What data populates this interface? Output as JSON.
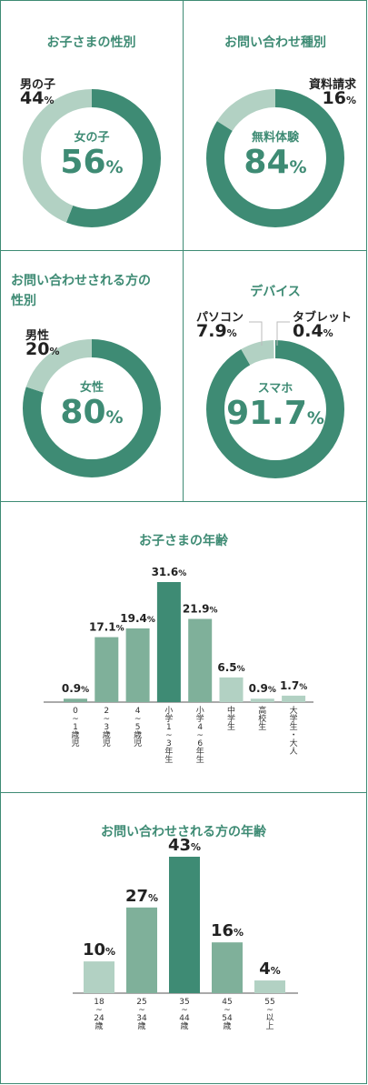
{
  "colors": {
    "dark": "#3e8b74",
    "mid": "#7fb09a",
    "light": "#b2d1c3",
    "border": "#3e8b74"
  },
  "donuts": [
    {
      "title_lines": [
        "お子さまの性別"
      ],
      "title_align": "center",
      "major": {
        "name": "女の子",
        "value": 56,
        "unit": "%"
      },
      "minor": [
        {
          "name": "男の子",
          "value": 44,
          "unit": "%",
          "color": "light"
        }
      ]
    },
    {
      "title_lines": [
        "お問い合わせ種別"
      ],
      "title_align": "center",
      "major": {
        "name": "無料体験",
        "value": 84,
        "unit": "%"
      },
      "minor": [
        {
          "name": "資料請求",
          "value": 16,
          "unit": "%",
          "color": "light"
        }
      ]
    },
    {
      "title_lines": [
        "お問い合わせされる方の",
        "性別"
      ],
      "title_align": "left",
      "major": {
        "name": "女性",
        "value": 80,
        "unit": "%"
      },
      "minor": [
        {
          "name": "男性",
          "value": 20,
          "unit": "%",
          "color": "light"
        }
      ]
    },
    {
      "title_lines": [
        "デバイス"
      ],
      "title_align": "center",
      "major": {
        "name": "スマホ",
        "value": 91.7,
        "unit": "%"
      },
      "minor": [
        {
          "name": "パソコン",
          "value": 7.9,
          "unit": "%",
          "color": "light"
        },
        {
          "name": "タブレット",
          "value": 0.4,
          "unit": "%",
          "color": "white"
        }
      ]
    }
  ],
  "chart_data": [
    {
      "type": "pie",
      "title": "お子さまの性別",
      "categories": [
        "女の子",
        "男の子"
      ],
      "values": [
        56,
        44
      ]
    },
    {
      "type": "pie",
      "title": "お問い合わせ種別",
      "categories": [
        "無料体験",
        "資料請求"
      ],
      "values": [
        84,
        16
      ]
    },
    {
      "type": "pie",
      "title": "お問い合わせされる方の性別",
      "categories": [
        "女性",
        "男性"
      ],
      "values": [
        80,
        20
      ]
    },
    {
      "type": "pie",
      "title": "デバイス",
      "categories": [
        "スマホ",
        "パソコン",
        "タブレット"
      ],
      "values": [
        91.7,
        7.9,
        0.4
      ]
    },
    {
      "type": "bar",
      "title": "お子さまの年齢",
      "categories": [
        "0~1歳児",
        "2~3歳児",
        "4~5歳児",
        "小学1~3年生",
        "小学4~6年生",
        "中学生",
        "高校生",
        "大学生・大人"
      ],
      "values": [
        0.9,
        17.1,
        19.4,
        31.6,
        21.9,
        6.5,
        0.9,
        1.7
      ],
      "unit": "%"
    },
    {
      "type": "bar",
      "title": "お問い合わせされる方の年齢",
      "categories": [
        "18~24歳",
        "25~34歳",
        "35~44歳",
        "45~54歳",
        "55~以上"
      ],
      "values": [
        10,
        27,
        43,
        16,
        4
      ],
      "unit": "%"
    }
  ],
  "bar1": {
    "title": "お子さまの年齢",
    "labels": [
      [
        "0",
        "~",
        "1",
        "歳",
        "児"
      ],
      [
        "2",
        "~",
        "3",
        "歳",
        "児"
      ],
      [
        "4",
        "~",
        "5",
        "歳",
        "児"
      ],
      [
        "小",
        "学",
        "1",
        "~",
        "3",
        "年",
        "生"
      ],
      [
        "小",
        "学",
        "4",
        "~",
        "6",
        "年",
        "生"
      ],
      [
        "中",
        "学",
        "生"
      ],
      [
        "高",
        "校",
        "生"
      ],
      [
        "大",
        "学",
        "生",
        "・",
        "大",
        "人"
      ]
    ],
    "value_labels": [
      "0.9",
      "17.1",
      "19.4",
      "31.6",
      "21.9",
      "6.5",
      "0.9",
      "1.7"
    ],
    "colors": [
      "mid",
      "mid",
      "mid",
      "dark",
      "mid",
      "light",
      "light",
      "light"
    ]
  },
  "bar2": {
    "title": "お問い合わせされる方の年齢",
    "labels": [
      [
        "18",
        "~",
        "24",
        "歳"
      ],
      [
        "25",
        "~",
        "34",
        "歳"
      ],
      [
        "35",
        "~",
        "44",
        "歳"
      ],
      [
        "45",
        "~",
        "54",
        "歳"
      ],
      [
        "55",
        "~",
        "以",
        "上"
      ]
    ],
    "value_labels": [
      "10",
      "27",
      "43",
      "16",
      "4"
    ],
    "colors": [
      "light",
      "mid",
      "dark",
      "mid",
      "light"
    ]
  }
}
